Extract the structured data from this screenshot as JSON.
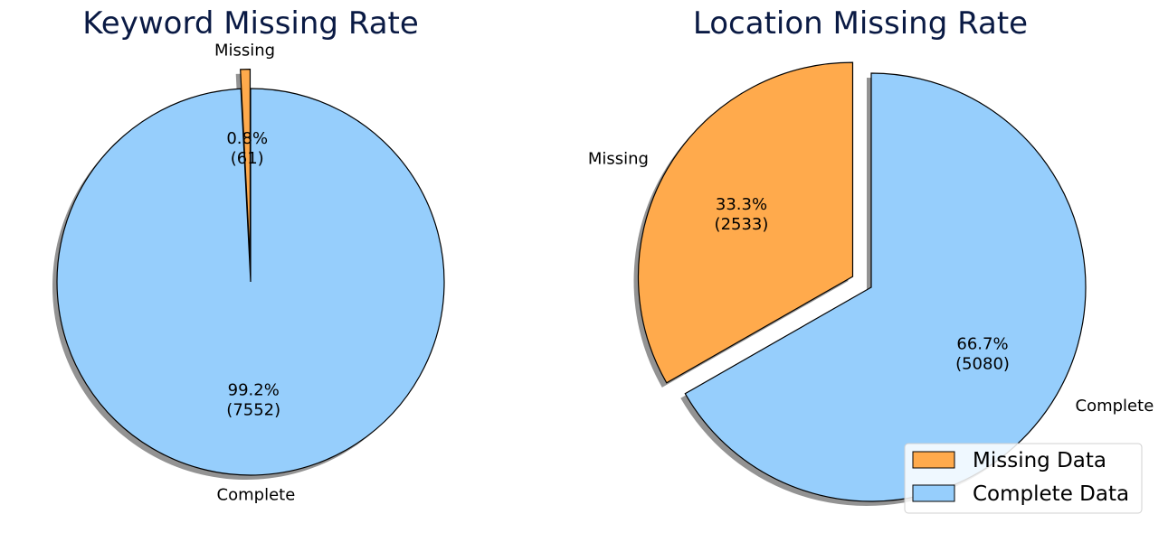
{
  "chart_data": [
    {
      "type": "pie",
      "title": "Keyword Missing Rate",
      "slices": [
        {
          "label": "Missing",
          "value": 61,
          "percent": "0.8%",
          "count_label": "(61)",
          "color": "#FFAA4C"
        },
        {
          "label": "Complete",
          "value": 7552,
          "percent": "99.2%",
          "count_label": "(7552)",
          "color": "#96CEFC"
        }
      ],
      "start_angle_deg": 90,
      "exploded": "Missing",
      "shadow": true
    },
    {
      "type": "pie",
      "title": "Location Missing Rate",
      "slices": [
        {
          "label": "Missing",
          "value": 2533,
          "percent": "33.3%",
          "count_label": "(2533)",
          "color": "#FFAA4C"
        },
        {
          "label": "Complete",
          "value": 5080,
          "percent": "66.7%",
          "count_label": "(5080)",
          "color": "#96CEFC"
        }
      ],
      "start_angle_deg": 90,
      "exploded": "Missing",
      "shadow": true,
      "legend": {
        "placement": "lower-right",
        "entries": [
          {
            "label": "Missing Data",
            "color": "#FFAA4C"
          },
          {
            "label": "Complete Data",
            "color": "#96CEFC"
          }
        ]
      }
    }
  ],
  "colors": {
    "title": "#0A1A44",
    "edge": "#000000",
    "shadow": "#808080"
  }
}
